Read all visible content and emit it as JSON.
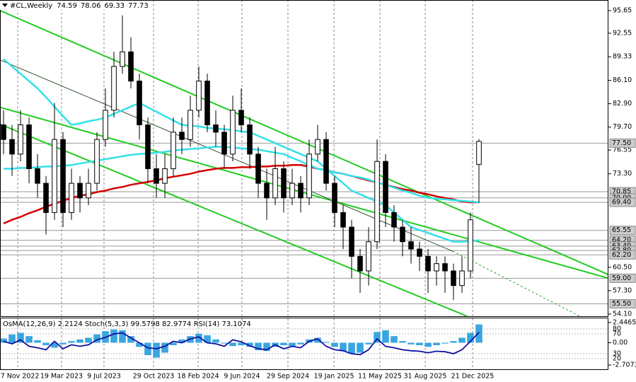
{
  "chart_data": [
    {
      "type": "candlestick",
      "title": "#CL,Weekly",
      "open": [
        80,
        78,
        76,
        80,
        74,
        72,
        68,
        78,
        68,
        72,
        70,
        72,
        78,
        82,
        88,
        90,
        86,
        80,
        74,
        72,
        74,
        79,
        78,
        82,
        86,
        80,
        79,
        76,
        82,
        80,
        76,
        72,
        70,
        74,
        70,
        72,
        70,
        76,
        78,
        72,
        68,
        66,
        62,
        60,
        64,
        75,
        68,
        66,
        64,
        63,
        62,
        60,
        61,
        60,
        58,
        60,
        74.59
      ],
      "high": [
        82,
        80,
        82,
        81,
        76,
        73,
        83,
        79,
        74,
        73,
        74,
        79,
        85,
        90,
        95,
        92,
        87,
        81,
        76,
        76,
        81,
        81,
        84,
        88,
        87,
        82,
        80,
        84,
        85,
        81,
        77,
        74,
        77,
        75,
        74,
        73,
        78,
        80,
        79,
        73,
        69,
        67,
        63,
        66,
        78,
        76,
        69,
        67,
        66,
        64,
        63,
        62,
        62,
        61,
        62,
        68,
        78.06
      ],
      "low": [
        76,
        73,
        75,
        72,
        70,
        65,
        67,
        66,
        67,
        68,
        69,
        71,
        77,
        81,
        87,
        85,
        78,
        72,
        70,
        70,
        73,
        76,
        77,
        81,
        79,
        77,
        74,
        75,
        79,
        74,
        70,
        67,
        69,
        68,
        69,
        68,
        69,
        75,
        71,
        66,
        63,
        59,
        57,
        58,
        63,
        66,
        64,
        62,
        61,
        60,
        57,
        58,
        57,
        56,
        57,
        59,
        69.33
      ],
      "close": [
        78,
        76,
        80,
        74,
        72,
        68,
        78,
        68,
        72,
        70,
        72,
        78,
        82,
        88,
        90,
        86,
        80,
        74,
        72,
        74,
        79,
        78,
        82,
        86,
        80,
        79,
        76,
        82,
        80,
        76,
        72,
        70,
        74,
        70,
        72,
        70,
        76,
        78,
        72,
        68,
        66,
        62,
        60,
        64,
        75,
        68,
        66,
        64,
        63,
        62,
        60,
        61,
        60,
        58,
        60,
        67,
        77.73
      ],
      "series": [
        {
          "color": "#d40000",
          "values": [
            66.5,
            67,
            67.4,
            67.9,
            68.3,
            68.8,
            69.2,
            69.6,
            70,
            70.3,
            70.5,
            70.8,
            71,
            71.3,
            71.5,
            71.8,
            72,
            72.2,
            72.4,
            72.7,
            72.9,
            73.1,
            73.3,
            73.6,
            73.8,
            74,
            74.1,
            74.1,
            74.2,
            74.2,
            74.3,
            74.3,
            74.4,
            74.4,
            74.5,
            74.5,
            74.3,
            74,
            73.8,
            73.5,
            73.3,
            73,
            72.7,
            72.4,
            72.1,
            71.8,
            71.5,
            71.2,
            71,
            70.7,
            70.5,
            70.2,
            70,
            69.8,
            69.5,
            69.4,
            69.4
          ]
        },
        {
          "color": "#33e0e8",
          "values": [
            74,
            74,
            74.1,
            74.1,
            74.2,
            74.3,
            74.3,
            74.4,
            74.5,
            74.7,
            74.9,
            75.1,
            75.3,
            75.5,
            75.7,
            75.9,
            76,
            76.1,
            76.2,
            76.3,
            76.5,
            76.6,
            76.7,
            76.8,
            76.9,
            77,
            77,
            76.9,
            76.8,
            76.7,
            76.6,
            76.4,
            76.2,
            76,
            75.5,
            75,
            74.5,
            74,
            73.8,
            73.5,
            73.3,
            73,
            72.8,
            72.5,
            72.1,
            71.8,
            71.4,
            71,
            70.7,
            70.3,
            70,
            69.9,
            69.8,
            69.7,
            69.6,
            69.5,
            69.4
          ]
        },
        {
          "color": "#33e0e8",
          "values": [
            89,
            88,
            87,
            86,
            85,
            83.8,
            82.5,
            81.2,
            80,
            80.2,
            80.5,
            80.7,
            81,
            81.5,
            82,
            82.5,
            83,
            82.4,
            81.8,
            81.2,
            80.6,
            80,
            79.9,
            79.8,
            79.6,
            79.5,
            79.4,
            79.3,
            79.1,
            79,
            78.5,
            78,
            77.5,
            77,
            76.5,
            76,
            75.5,
            75,
            74,
            73,
            72,
            71,
            70.5,
            70,
            69.5,
            69,
            68,
            67,
            66,
            65.6,
            65.2,
            64.8,
            64.4,
            64,
            64,
            64.1,
            64.2
          ]
        }
      ],
      "trendlines": [
        {
          "color": "#22cc22",
          "x": [
            -0.42,
            71.25
          ],
          "values": [
            95.65,
            59.5
          ]
        },
        {
          "color": "#22cc22",
          "x": [
            -0.42,
            71.25
          ],
          "values": [
            82.4,
            59.0
          ]
        },
        {
          "color": "#22cc22",
          "x": [
            -0.42,
            54.6
          ],
          "values": [
            80.1,
            53.8
          ]
        },
        {
          "color": "#335533",
          "x": [
            -0.42,
            52.9
          ],
          "values": [
            88.9,
            62.7
          ]
        },
        {
          "color": "#22aa22",
          "dashed": true,
          "x": [
            52.9,
            67.9
          ],
          "values": [
            62.7,
            53.8
          ]
        }
      ],
      "levels": [
        {
          "value": 77.5,
          "label": "77.50"
        },
        70.85,
        {
          "value": 70,
          "label": "70.00"
        },
        {
          "value": 69.4,
          "label": "69.40"
        },
        65.55,
        {
          "value": 64.2,
          "label": "64.20"
        },
        {
          "value": 63.4,
          "label": "63.40"
        },
        {
          "value": 62.8,
          "label": "62.80"
        },
        {
          "value": 62.2,
          "label": "62.20"
        },
        {
          "value": 59,
          "label": "59.00"
        },
        {
          "value": 55.5,
          "label": "55.50"
        }
      ],
      "ylim": [
        53.8,
        97.1
      ],
      "yticks": [
        95.65,
        92.55,
        89.33,
        {
          "value": 86.1,
          "label": "86.10"
        },
        {
          "value": 82.9,
          "label": "82.90"
        },
        {
          "value": 79.7,
          "label": "79.70"
        },
        76.55,
        {
          "value": 73.3,
          "label": "73.30"
        },
        {
          "value": 60.5,
          "label": "60.50"
        },
        {
          "value": 57.3,
          "label": "57.30"
        },
        {
          "value": 54.1,
          "label": "54.10"
        }
      ],
      "xlim": [
        -0.42,
        71.25
      ],
      "xticks": [
        {
          "value": 1.67,
          "label": "27 Nov 2022"
        },
        {
          "value": 6.83,
          "label": "19 Mar 2023"
        },
        {
          "value": 11.83,
          "label": "9 Jul 2023"
        },
        {
          "value": 17.67,
          "label": "29 Oct 2023"
        },
        {
          "value": 22.92,
          "label": "18 Feb 2024"
        },
        {
          "value": 28.08,
          "label": "9 Jun 2024"
        },
        {
          "value": 33.5,
          "label": "29 Sep 2024"
        },
        {
          "value": 38.92,
          "label": "19 Jan 2025"
        },
        {
          "value": 44.33,
          "label": "11 May 2025"
        },
        {
          "value": 49.67,
          "label": "31 Aug 2025"
        },
        {
          "value": 55.25,
          "label": "21 Dec 2025"
        }
      ],
      "grid": true
    },
    {
      "type": "oscillator",
      "title": "OsMA(12,26,9) 2.2124 Stoch(5,3,3) 99.5798 82.9774 RSI(14) 73.1074",
      "osma": {
        "color": "#3aa6e0",
        "values": [
          0.5,
          1,
          1.2,
          0.8,
          0.3,
          -0.3,
          -0.6,
          -0.2,
          0.2,
          0.4,
          0.6,
          1,
          1.4,
          1.6,
          1.5,
          0.8,
          -0.5,
          -1.5,
          -1.8,
          -1.2,
          -0.3,
          0.4,
          0.8,
          1.1,
          0.9,
          0.4,
          -0.1,
          -0.4,
          -0.3,
          -0.5,
          -0.9,
          -1,
          -0.5,
          -0.3,
          -0.4,
          -0.2,
          0.4,
          0.6,
          0.1,
          -0.5,
          -1,
          -1.3,
          -1.2,
          -0.2,
          1.3,
          1.5,
          0.8,
          0.2,
          -0.2,
          -0.3,
          -0.5,
          -0.3,
          -0.1,
          0.2,
          0.6,
          1.2,
          2.2124
        ]
      },
      "rsi": {
        "color": "#1010a0",
        "axis": "y2",
        "values": [
          55,
          50,
          58,
          45,
          42,
          38,
          55,
          40,
          48,
          45,
          48,
          58,
          63,
          70,
          72,
          62,
          52,
          42,
          40,
          45,
          55,
          52,
          60,
          64,
          52,
          50,
          45,
          58,
          54,
          46,
          40,
          38,
          48,
          40,
          45,
          42,
          55,
          60,
          45,
          38,
          36,
          30,
          28,
          38,
          60,
          45,
          42,
          38,
          36,
          35,
          32,
          35,
          34,
          30,
          38,
          55,
          73.1074
        ]
      },
      "ylim": [
        -3.21,
        2.95
      ],
      "yticks": [
        2.4465,
        {
          "value": 0,
          "label": "0.00"
        },
        -2.7073
      ],
      "y2lim": [
        -1.4,
        101.5
      ],
      "y2ticks": [
        80,
        70,
        30,
        20
      ]
    }
  ]
}
